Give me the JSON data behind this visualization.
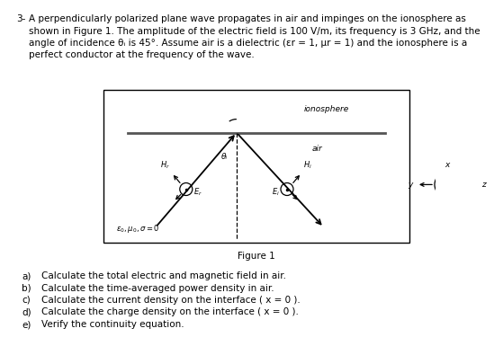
{
  "bg_color": "#ffffff",
  "text_color": "#000000",
  "problem_number": "3-",
  "problem_text_line1": "A perpendicularly polarized plane wave propagates in air and impinges on the ionosphere as",
  "problem_text_line2": "shown in Figure 1. The amplitude of the electric field is 100 V/m, its frequency is 3 GHz, and the",
  "problem_text_line3": "angle of incidence θᵢ is 45°. Assume air is a dielectric (εr = 1, μr = 1) and the ionosphere is a",
  "problem_text_line4": "perfect conductor at the frequency of the wave.",
  "figure_label": "Figure 1",
  "ionosphere_label": "ionosphere",
  "air_label": "air",
  "theta_label": "θᵢ",
  "medium_label": "ε₀, μ₀, σ =0",
  "sub_questions_letters": [
    "a)",
    "b)",
    "c)",
    "d)",
    "e)"
  ],
  "sub_questions_text": [
    "Calculate the total electric and magnetic field in air.",
    "Calculate the time-averaged power density in air.",
    "Calculate the current density on the interface ( x = 0 ).",
    "Calculate the charge density on the interface ( x = 0 ).",
    "Verify the continuity equation."
  ],
  "fs_body": 7.5,
  "fs_small": 6.5,
  "fs_label": 6.0
}
